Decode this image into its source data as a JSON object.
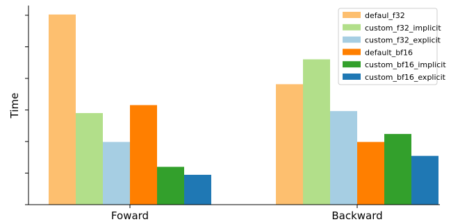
{
  "chart_data": {
    "type": "bar",
    "title": "",
    "xlabel": "",
    "ylabel": "Time",
    "categories": [
      "Foward",
      "Backward"
    ],
    "ylim": [
      0,
      1.0
    ],
    "y_tick_count": 7,
    "y_tick_labels_visible": false,
    "grid": false,
    "legend_position": "top-right",
    "series": [
      {
        "name": "defaul_f32",
        "color": "#fdbf6f",
        "values": [
          0.955,
          0.605
        ]
      },
      {
        "name": "custom_f32_implicit",
        "color": "#b2df8a",
        "values": [
          0.46,
          0.73
        ]
      },
      {
        "name": "custom_f32_explicit",
        "color": "#a6cee3",
        "values": [
          0.315,
          0.47
        ]
      },
      {
        "name": "default_bf16",
        "color": "#ff7f00",
        "values": [
          0.5,
          0.315
        ]
      },
      {
        "name": "custom_bf16_implicit",
        "color": "#33a02c",
        "values": [
          0.19,
          0.355
        ]
      },
      {
        "name": "custom_bf16_explicit",
        "color": "#1f78b4",
        "values": [
          0.15,
          0.245
        ]
      }
    ]
  }
}
